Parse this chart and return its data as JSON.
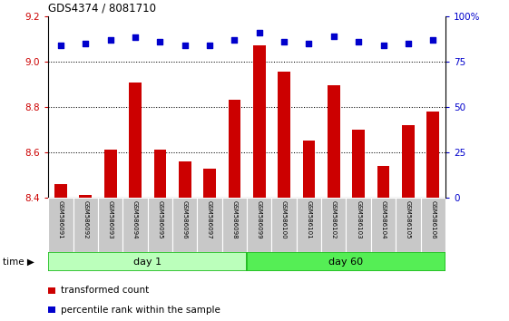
{
  "title": "GDS4374 / 8081710",
  "samples": [
    "GSM586091",
    "GSM586092",
    "GSM586093",
    "GSM586094",
    "GSM586095",
    "GSM586096",
    "GSM586097",
    "GSM586098",
    "GSM586099",
    "GSM586100",
    "GSM586101",
    "GSM586102",
    "GSM586103",
    "GSM586104",
    "GSM586105",
    "GSM586106"
  ],
  "bar_values": [
    8.46,
    8.41,
    8.61,
    8.905,
    8.61,
    8.56,
    8.525,
    8.83,
    9.07,
    8.955,
    8.65,
    8.895,
    8.7,
    8.54,
    8.72,
    8.78
  ],
  "percentile_values": [
    84,
    85,
    87,
    88.5,
    86,
    84,
    84,
    87,
    91,
    86,
    85,
    89,
    86,
    84,
    85,
    87
  ],
  "bar_color": "#cc0000",
  "dot_color": "#0000cc",
  "ylim_left": [
    8.4,
    9.2
  ],
  "ylim_right": [
    0,
    100
  ],
  "yticks_left": [
    8.4,
    8.6,
    8.8,
    9.0,
    9.2
  ],
  "yticks_right": [
    0,
    25,
    50,
    75,
    100
  ],
  "grid_values": [
    8.6,
    8.8,
    9.0
  ],
  "group1_label": "day 1",
  "group2_label": "day 60",
  "group1_color": "#bbffbb",
  "group2_color": "#55ee55",
  "group1_count": 8,
  "legend_bar_label": "transformed count",
  "legend_dot_label": "percentile rank within the sample",
  "bar_bottom": 8.4,
  "bar_width": 0.5,
  "left_tick_color": "#cc0000",
  "right_tick_color": "#0000cc",
  "sample_box_color": "#c8c8c8",
  "sample_box_edge": "#ffffff"
}
